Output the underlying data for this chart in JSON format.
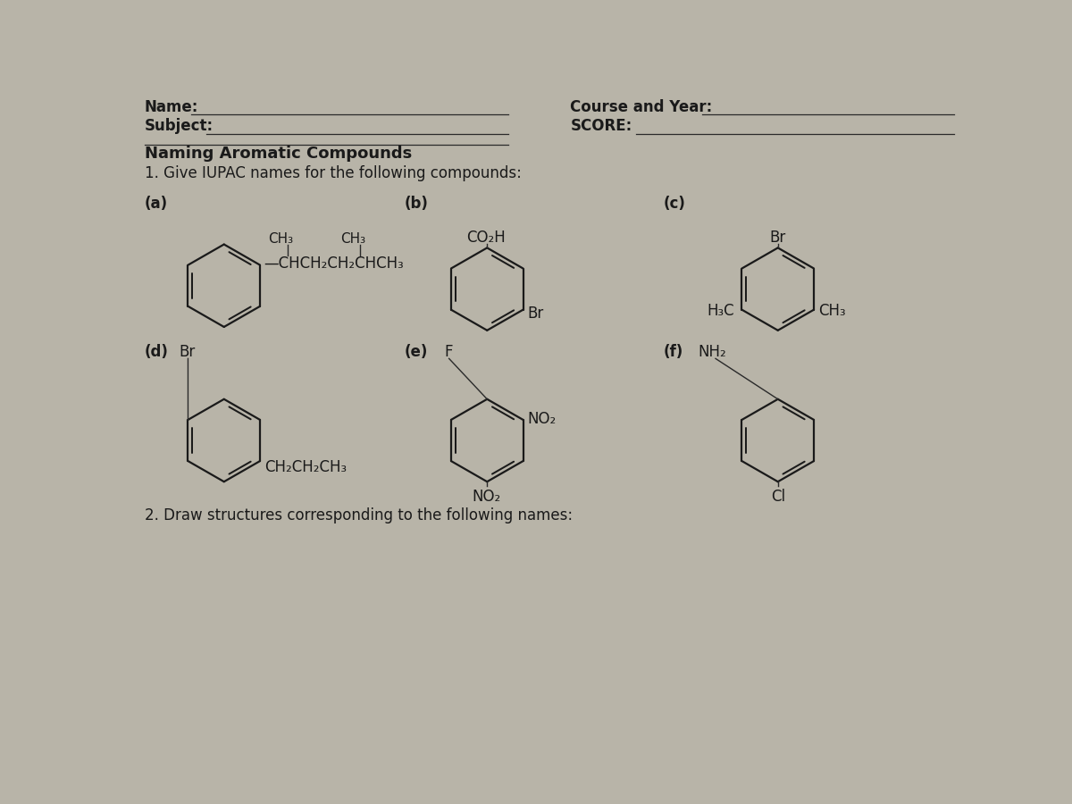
{
  "bg_color": "#b8b4a8",
  "text_color": "#1a1a1a",
  "line_color": "#2a2a2a",
  "font_size_header": 12,
  "font_size_title": 13,
  "font_size_label": 12,
  "font_size_chem": 11,
  "font_size_footer": 12,
  "header": {
    "name_label": "Name:",
    "subject_label": "Subject:",
    "course_label": "Course and Year:",
    "score_label": "SCORE:"
  },
  "title_text": "Naming Aromatic Compounds",
  "subtitle_text": "1. Give IUPAC names for the following compounds:",
  "footer_text": "2. Draw structures corresponding to the following names:"
}
